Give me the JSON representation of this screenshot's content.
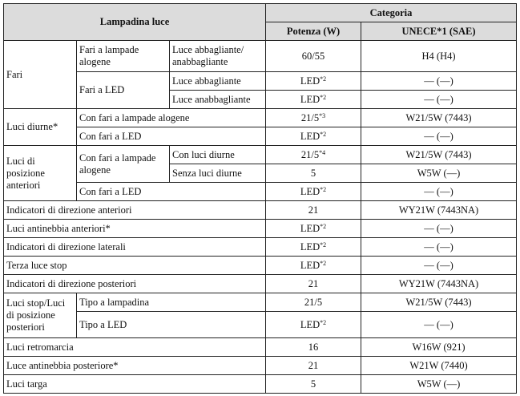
{
  "header": {
    "bulb_col": "Lampadina luce",
    "category": "Categoria",
    "power": "Potenza (W)",
    "unece": "UNECE*1 (SAE)"
  },
  "rows": {
    "fari": {
      "label": "Fari",
      "alogene": "Fari a lampade alogene",
      "alogene_mode": "Luce abbagliante/ anabbagliante",
      "alogene_power": "60/55",
      "alogene_unece": "H4 (H4)",
      "led": "Fari a LED",
      "led_high": "Luce abbagliante",
      "led_high_power": "LED",
      "led_high_sup": "*2",
      "led_high_unece": "— (—)",
      "led_low": "Luce anabbagliante",
      "led_low_power": "LED",
      "led_low_sup": "*2",
      "led_low_unece": "— (—)"
    },
    "diurne": {
      "label": "Luci diurne*",
      "alogene": "Con fari a lampade alogene",
      "alogene_power": "21/5",
      "alogene_sup": "*3",
      "alogene_unece": "W21/5W (7443)",
      "led": "Con fari a LED",
      "led_power": "LED",
      "led_sup": "*2",
      "led_unece": "— (—)"
    },
    "posizione": {
      "label": "Luci di posizione anteriori",
      "alogene": "Con fari a lampade alogene",
      "with_drl": "Con luci diurne",
      "with_drl_power": "21/5",
      "with_drl_sup": "*4",
      "with_drl_unece": "W21/5W (7443)",
      "without_drl": "Senza luci diurne",
      "without_drl_power": "5",
      "without_drl_unece": "W5W (—)",
      "led": "Con fari a LED",
      "led_power": "LED",
      "led_sup": "*2",
      "led_unece": "— (—)"
    },
    "dir_ant": {
      "label": "Indicatori di direzione anteriori",
      "power": "21",
      "unece": "WY21W (7443NA)"
    },
    "fendi_ant": {
      "label": "Luci antinebbia anteriori*",
      "power": "LED",
      "sup": "*2",
      "unece": "— (—)"
    },
    "dir_lat": {
      "label": "Indicatori di direzione laterali",
      "power": "LED",
      "sup": "*2",
      "unece": "— (—)"
    },
    "terza_stop": {
      "label": "Terza luce stop",
      "power": "LED",
      "sup": "*2",
      "unece": "— (—)"
    },
    "dir_post": {
      "label": "Indicatori di direzione posteriori",
      "power": "21",
      "unece": "WY21W (7443NA)"
    },
    "stop": {
      "label": "Luci stop/Luci di posizione posteriori",
      "lampadina": "Tipo a lampadina",
      "lampadina_power": "21/5",
      "lampadina_unece": "W21/5W (7443)",
      "led": "Tipo a LED",
      "led_power": "LED",
      "led_sup": "*2",
      "led_unece": "— (—)"
    },
    "retro": {
      "label": "Luci retromarcia",
      "power": "16",
      "unece": "W16W (921)"
    },
    "fendi_post": {
      "label": "Luce antinebbia posteriore*",
      "power": "21",
      "unece": "W21W (7440)"
    },
    "targa": {
      "label": "Luci targa",
      "power": "5",
      "unece": "W5W (—)"
    }
  }
}
